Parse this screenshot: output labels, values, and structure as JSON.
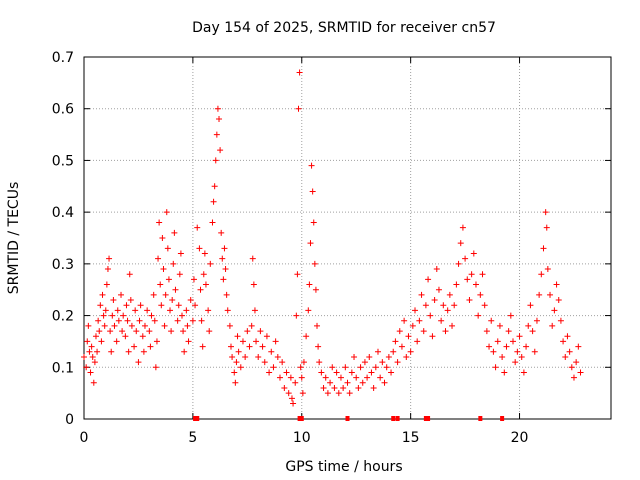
{
  "chart_data": {
    "type": "scatter",
    "title": "Day 154 of 2025, SRMTID for receiver cn57",
    "xlabel": "GPS time / hours",
    "ylabel": "SRMTID / TECUs",
    "xlim": [
      0,
      24.2
    ],
    "ylim": [
      0,
      0.7
    ],
    "xticks": [
      0,
      5,
      10,
      15,
      20
    ],
    "xtick_labels": [
      "0",
      "5",
      "10",
      "15",
      "20"
    ],
    "yticks": [
      0,
      0.1,
      0.2,
      0.3,
      0.4,
      0.5,
      0.6,
      0.7
    ],
    "ytick_labels": [
      "0",
      "0.1",
      "0.2",
      "0.3",
      "0.4",
      "0.5",
      "0.6",
      "0.7"
    ],
    "grid": true,
    "marker": "+",
    "color": "#ff0000",
    "series": [
      {
        "name": "SRMTID",
        "points": [
          [
            0.0,
            0.12
          ],
          [
            0.1,
            0.1
          ],
          [
            0.15,
            0.15
          ],
          [
            0.2,
            0.18
          ],
          [
            0.25,
            0.13
          ],
          [
            0.3,
            0.09
          ],
          [
            0.35,
            0.14
          ],
          [
            0.4,
            0.12
          ],
          [
            0.45,
            0.07
          ],
          [
            0.5,
            0.11
          ],
          [
            0.55,
            0.16
          ],
          [
            0.6,
            0.13
          ],
          [
            0.65,
            0.19
          ],
          [
            0.7,
            0.17
          ],
          [
            0.75,
            0.22
          ],
          [
            0.8,
            0.15
          ],
          [
            0.85,
            0.24
          ],
          [
            0.9,
            0.2
          ],
          [
            0.95,
            0.18
          ],
          [
            1.0,
            0.21
          ],
          [
            1.05,
            0.26
          ],
          [
            1.1,
            0.29
          ],
          [
            1.15,
            0.31
          ],
          [
            1.2,
            0.17
          ],
          [
            1.25,
            0.13
          ],
          [
            1.3,
            0.2
          ],
          [
            1.35,
            0.23
          ],
          [
            1.4,
            0.18
          ],
          [
            1.5,
            0.15
          ],
          [
            1.55,
            0.21
          ],
          [
            1.6,
            0.19
          ],
          [
            1.7,
            0.24
          ],
          [
            1.75,
            0.17
          ],
          [
            1.8,
            0.2
          ],
          [
            1.9,
            0.16
          ],
          [
            1.95,
            0.22
          ],
          [
            2.0,
            0.19
          ],
          [
            2.05,
            0.13
          ],
          [
            2.1,
            0.28
          ],
          [
            2.15,
            0.23
          ],
          [
            2.2,
            0.18
          ],
          [
            2.3,
            0.14
          ],
          [
            2.35,
            0.21
          ],
          [
            2.4,
            0.17
          ],
          [
            2.5,
            0.11
          ],
          [
            2.55,
            0.19
          ],
          [
            2.6,
            0.22
          ],
          [
            2.7,
            0.16
          ],
          [
            2.75,
            0.13
          ],
          [
            2.8,
            0.18
          ],
          [
            2.9,
            0.21
          ],
          [
            3.0,
            0.17
          ],
          [
            3.05,
            0.14
          ],
          [
            3.1,
            0.2
          ],
          [
            3.2,
            0.24
          ],
          [
            3.25,
            0.19
          ],
          [
            3.3,
            0.1
          ],
          [
            3.35,
            0.15
          ],
          [
            3.4,
            0.31
          ],
          [
            3.45,
            0.38
          ],
          [
            3.5,
            0.26
          ],
          [
            3.55,
            0.22
          ],
          [
            3.6,
            0.35
          ],
          [
            3.65,
            0.29
          ],
          [
            3.7,
            0.18
          ],
          [
            3.75,
            0.24
          ],
          [
            3.8,
            0.4
          ],
          [
            3.85,
            0.33
          ],
          [
            3.9,
            0.27
          ],
          [
            3.95,
            0.21
          ],
          [
            4.0,
            0.17
          ],
          [
            4.05,
            0.23
          ],
          [
            4.1,
            0.3
          ],
          [
            4.15,
            0.36
          ],
          [
            4.2,
            0.25
          ],
          [
            4.3,
            0.19
          ],
          [
            4.35,
            0.22
          ],
          [
            4.4,
            0.28
          ],
          [
            4.45,
            0.32
          ],
          [
            4.5,
            0.2
          ],
          [
            4.55,
            0.17
          ],
          [
            4.6,
            0.13
          ],
          [
            4.7,
            0.21
          ],
          [
            4.75,
            0.18
          ],
          [
            4.8,
            0.15
          ],
          [
            4.9,
            0.23
          ],
          [
            5.0,
            0.19
          ],
          [
            5.05,
            0.27
          ],
          [
            5.1,
            0.22
          ],
          [
            5.2,
            0.37
          ],
          [
            5.3,
            0.33
          ],
          [
            5.35,
            0.25
          ],
          [
            5.4,
            0.19
          ],
          [
            5.45,
            0.14
          ],
          [
            5.5,
            0.28
          ],
          [
            5.55,
            0.32
          ],
          [
            5.6,
            0.26
          ],
          [
            5.7,
            0.21
          ],
          [
            5.75,
            0.17
          ],
          [
            5.8,
            0.3
          ],
          [
            5.9,
            0.38
          ],
          [
            5.95,
            0.42
          ],
          [
            6.0,
            0.45
          ],
          [
            6.05,
            0.5
          ],
          [
            6.1,
            0.55
          ],
          [
            6.15,
            0.6
          ],
          [
            6.2,
            0.58
          ],
          [
            6.25,
            0.52
          ],
          [
            6.3,
            0.36
          ],
          [
            6.35,
            0.31
          ],
          [
            6.4,
            0.27
          ],
          [
            6.45,
            0.33
          ],
          [
            6.5,
            0.29
          ],
          [
            6.55,
            0.24
          ],
          [
            6.6,
            0.21
          ],
          [
            6.7,
            0.18
          ],
          [
            6.75,
            0.14
          ],
          [
            6.8,
            0.12
          ],
          [
            6.9,
            0.09
          ],
          [
            6.95,
            0.07
          ],
          [
            7.0,
            0.11
          ],
          [
            7.05,
            0.16
          ],
          [
            7.1,
            0.13
          ],
          [
            7.2,
            0.1
          ],
          [
            7.3,
            0.15
          ],
          [
            7.4,
            0.12
          ],
          [
            7.5,
            0.17
          ],
          [
            7.6,
            0.14
          ],
          [
            7.7,
            0.18
          ],
          [
            7.75,
            0.31
          ],
          [
            7.8,
            0.26
          ],
          [
            7.85,
            0.21
          ],
          [
            7.9,
            0.15
          ],
          [
            8.0,
            0.12
          ],
          [
            8.1,
            0.17
          ],
          [
            8.2,
            0.14
          ],
          [
            8.3,
            0.11
          ],
          [
            8.4,
            0.16
          ],
          [
            8.5,
            0.09
          ],
          [
            8.6,
            0.13
          ],
          [
            8.7,
            0.1
          ],
          [
            8.8,
            0.15
          ],
          [
            8.9,
            0.12
          ],
          [
            9.0,
            0.08
          ],
          [
            9.1,
            0.11
          ],
          [
            9.2,
            0.06
          ],
          [
            9.3,
            0.09
          ],
          [
            9.4,
            0.05
          ],
          [
            9.5,
            0.08
          ],
          [
            9.55,
            0.04
          ],
          [
            9.6,
            0.03
          ],
          [
            9.7,
            0.07
          ],
          [
            9.75,
            0.2
          ],
          [
            9.8,
            0.28
          ],
          [
            9.85,
            0.6
          ],
          [
            9.9,
            0.67
          ],
          [
            9.95,
            0.1
          ],
          [
            10.0,
            0.08
          ],
          [
            10.05,
            0.05
          ],
          [
            10.1,
            0.11
          ],
          [
            10.2,
            0.16
          ],
          [
            10.3,
            0.21
          ],
          [
            10.35,
            0.26
          ],
          [
            10.4,
            0.34
          ],
          [
            10.45,
            0.49
          ],
          [
            10.5,
            0.44
          ],
          [
            10.55,
            0.38
          ],
          [
            10.6,
            0.3
          ],
          [
            10.65,
            0.25
          ],
          [
            10.7,
            0.18
          ],
          [
            10.75,
            0.14
          ],
          [
            10.8,
            0.11
          ],
          [
            10.9,
            0.09
          ],
          [
            11.0,
            0.06
          ],
          [
            11.1,
            0.08
          ],
          [
            11.2,
            0.05
          ],
          [
            11.3,
            0.07
          ],
          [
            11.4,
            0.1
          ],
          [
            11.5,
            0.06
          ],
          [
            11.6,
            0.09
          ],
          [
            11.7,
            0.05
          ],
          [
            11.8,
            0.08
          ],
          [
            11.9,
            0.06
          ],
          [
            12.0,
            0.1
          ],
          [
            12.1,
            0.07
          ],
          [
            12.2,
            0.05
          ],
          [
            12.3,
            0.09
          ],
          [
            12.4,
            0.12
          ],
          [
            12.5,
            0.08
          ],
          [
            12.6,
            0.06
          ],
          [
            12.7,
            0.1
          ],
          [
            12.8,
            0.07
          ],
          [
            12.9,
            0.11
          ],
          [
            13.0,
            0.08
          ],
          [
            13.1,
            0.12
          ],
          [
            13.2,
            0.09
          ],
          [
            13.3,
            0.06
          ],
          [
            13.4,
            0.1
          ],
          [
            13.5,
            0.13
          ],
          [
            13.6,
            0.08
          ],
          [
            13.7,
            0.11
          ],
          [
            13.8,
            0.07
          ],
          [
            13.9,
            0.1
          ],
          [
            14.0,
            0.12
          ],
          [
            14.1,
            0.09
          ],
          [
            14.2,
            0.13
          ],
          [
            14.3,
            0.15
          ],
          [
            14.4,
            0.11
          ],
          [
            14.5,
            0.17
          ],
          [
            14.6,
            0.14
          ],
          [
            14.7,
            0.19
          ],
          [
            14.8,
            0.12
          ],
          [
            14.9,
            0.16
          ],
          [
            15.0,
            0.13
          ],
          [
            15.1,
            0.18
          ],
          [
            15.2,
            0.21
          ],
          [
            15.3,
            0.15
          ],
          [
            15.4,
            0.19
          ],
          [
            15.5,
            0.24
          ],
          [
            15.6,
            0.17
          ],
          [
            15.7,
            0.22
          ],
          [
            15.8,
            0.27
          ],
          [
            15.9,
            0.2
          ],
          [
            16.0,
            0.16
          ],
          [
            16.1,
            0.23
          ],
          [
            16.2,
            0.29
          ],
          [
            16.3,
            0.25
          ],
          [
            16.4,
            0.19
          ],
          [
            16.5,
            0.22
          ],
          [
            16.6,
            0.17
          ],
          [
            16.7,
            0.21
          ],
          [
            16.8,
            0.24
          ],
          [
            16.9,
            0.18
          ],
          [
            17.0,
            0.22
          ],
          [
            17.1,
            0.26
          ],
          [
            17.2,
            0.3
          ],
          [
            17.3,
            0.34
          ],
          [
            17.4,
            0.37
          ],
          [
            17.5,
            0.31
          ],
          [
            17.6,
            0.27
          ],
          [
            17.7,
            0.23
          ],
          [
            17.8,
            0.28
          ],
          [
            17.9,
            0.32
          ],
          [
            18.0,
            0.26
          ],
          [
            18.1,
            0.2
          ],
          [
            18.2,
            0.24
          ],
          [
            18.3,
            0.28
          ],
          [
            18.4,
            0.22
          ],
          [
            18.5,
            0.17
          ],
          [
            18.6,
            0.14
          ],
          [
            18.7,
            0.19
          ],
          [
            18.8,
            0.13
          ],
          [
            18.9,
            0.1
          ],
          [
            19.0,
            0.15
          ],
          [
            19.1,
            0.18
          ],
          [
            19.2,
            0.12
          ],
          [
            19.3,
            0.09
          ],
          [
            19.4,
            0.14
          ],
          [
            19.5,
            0.17
          ],
          [
            19.6,
            0.2
          ],
          [
            19.7,
            0.15
          ],
          [
            19.8,
            0.11
          ],
          [
            19.9,
            0.13
          ],
          [
            20.0,
            0.16
          ],
          [
            20.1,
            0.12
          ],
          [
            20.2,
            0.09
          ],
          [
            20.3,
            0.14
          ],
          [
            20.4,
            0.18
          ],
          [
            20.5,
            0.22
          ],
          [
            20.6,
            0.17
          ],
          [
            20.7,
            0.13
          ],
          [
            20.8,
            0.19
          ],
          [
            20.9,
            0.24
          ],
          [
            21.0,
            0.28
          ],
          [
            21.1,
            0.33
          ],
          [
            21.2,
            0.4
          ],
          [
            21.25,
            0.37
          ],
          [
            21.3,
            0.29
          ],
          [
            21.4,
            0.24
          ],
          [
            21.5,
            0.18
          ],
          [
            21.6,
            0.21
          ],
          [
            21.7,
            0.26
          ],
          [
            21.8,
            0.23
          ],
          [
            21.9,
            0.19
          ],
          [
            22.0,
            0.15
          ],
          [
            22.1,
            0.12
          ],
          [
            22.2,
            0.16
          ],
          [
            22.3,
            0.13
          ],
          [
            22.4,
            0.1
          ],
          [
            22.5,
            0.08
          ],
          [
            22.6,
            0.11
          ],
          [
            22.7,
            0.14
          ],
          [
            22.8,
            0.09
          ]
        ]
      }
    ],
    "bottom_markers": [
      5.1,
      5.2,
      9.9,
      10.0,
      12.1,
      14.2,
      14.4,
      15.7,
      15.8,
      18.2,
      19.2
    ]
  }
}
